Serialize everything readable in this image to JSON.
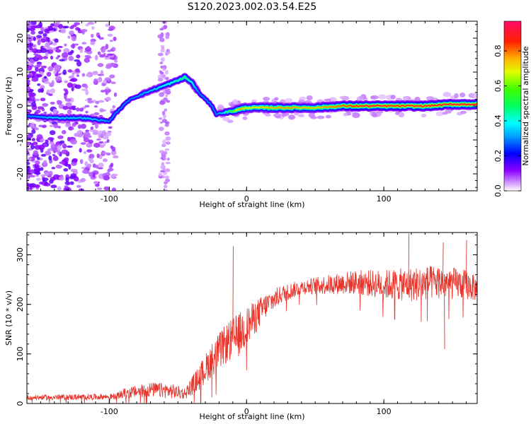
{
  "title": "S120.2023.002.03.54.E25",
  "chart_data": [
    {
      "type": "heatmap",
      "xlabel": "Height of straight line (km)",
      "ylabel": "Frequency (Hz)",
      "xlim": [
        -160,
        168
      ],
      "ylim": [
        -25,
        25
      ],
      "xticks": [
        -100,
        0,
        100
      ],
      "yticks": [
        -20,
        -10,
        0,
        10,
        20
      ],
      "colorbar": {
        "label": "Normalized spectral amplitude",
        "range": [
          0,
          0.97
        ],
        "ticks": [
          "0.0",
          "0.2",
          "0.4",
          "0.6",
          "0.8"
        ],
        "colormap": "gist_rainbow_r"
      },
      "ridge": {
        "x": [
          -160,
          -140,
          -120,
          -110,
          -100,
          -95,
          -85,
          -70,
          -60,
          -50,
          -45,
          -40,
          -35,
          -30,
          -25,
          -22,
          -18,
          -10,
          -5,
          0,
          10,
          30,
          50,
          70,
          90,
          110,
          130,
          150,
          168
        ],
        "y": [
          -3,
          -3.5,
          -3.5,
          -4,
          -4.5,
          -2,
          2,
          4.5,
          6,
          7.5,
          8.5,
          7,
          4,
          2,
          0,
          -2.5,
          -2,
          -1.5,
          -1,
          -0.5,
          -0.5,
          -0.5,
          -0.5,
          0,
          0,
          0,
          0,
          0.5,
          0.5
        ],
        "amplitude": [
          0.3,
          0.35,
          0.35,
          0.35,
          0.3,
          0.3,
          0.3,
          0.35,
          0.4,
          0.45,
          0.5,
          0.4,
          0.3,
          0.3,
          0.3,
          0.3,
          0.35,
          0.6,
          0.8,
          0.7,
          0.75,
          0.8,
          0.75,
          0.85,
          0.95,
          0.9,
          0.92,
          0.95,
          0.95
        ]
      }
    },
    {
      "type": "line",
      "xlabel": "Height of straight line (km)",
      "ylabel": "SNR (10 * v/v)",
      "xlim": [
        -160,
        168
      ],
      "ylim": [
        0,
        345
      ],
      "xticks": [
        -100,
        0,
        100
      ],
      "yticks": [
        0,
        100,
        200,
        300
      ],
      "color": "#e8332a",
      "envelope": {
        "x": [
          -160,
          -120,
          -95,
          -90,
          -70,
          -55,
          -45,
          -35,
          -25,
          -15,
          -5,
          5,
          15,
          25,
          40,
          60,
          80,
          100,
          120,
          140,
          160,
          168
        ],
        "y": [
          12,
          13,
          14,
          20,
          28,
          25,
          20,
          50,
          90,
          120,
          140,
          170,
          200,
          220,
          235,
          240,
          245,
          240,
          240,
          245,
          240,
          230
        ],
        "noise": [
          5,
          6,
          6,
          10,
          15,
          15,
          12,
          25,
          35,
          40,
          45,
          35,
          25,
          18,
          15,
          20,
          25,
          30,
          35,
          35,
          30,
          25
        ]
      },
      "spikes": [
        {
          "x": -10,
          "y": 317
        },
        {
          "x": 118,
          "y": 343
        },
        {
          "x": 143,
          "y": 325
        },
        {
          "x": 160,
          "y": 330
        },
        {
          "x": 144,
          "y": 110
        }
      ]
    }
  ]
}
